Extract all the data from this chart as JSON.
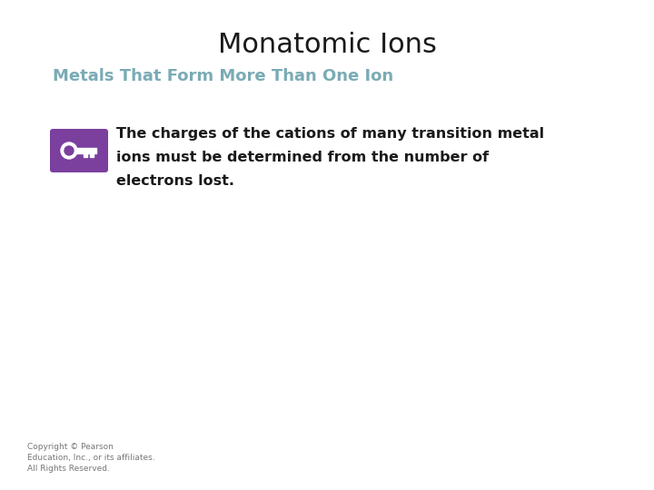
{
  "title": "Monatomic Ions",
  "subtitle": "Metals That Form More Than One Ion",
  "subtitle_color": "#7aabb5",
  "body_text_line1": "The charges of the cations of many transition metal",
  "body_text_line2": "ions must be determined from the number of",
  "body_text_line3": "electrons lost.",
  "body_text_color": "#1a1a1a",
  "key_icon_bg": "#7b3f9e",
  "background_color": "#ffffff",
  "copyright_text": "Copyright © Pearson\nEducation, Inc., or its affiliates.\nAll Rights Reserved.",
  "title_fontsize": 22,
  "subtitle_fontsize": 13,
  "body_fontsize": 11.5,
  "copyright_fontsize": 6.5
}
